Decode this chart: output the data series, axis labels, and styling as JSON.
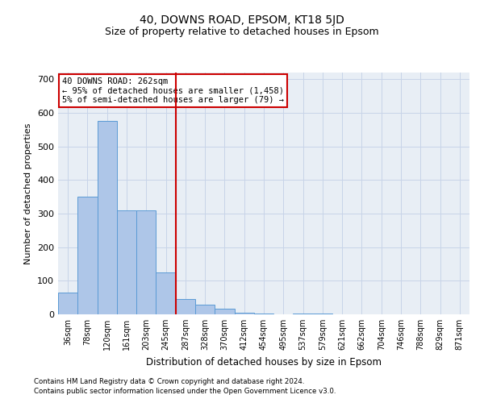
{
  "title": "40, DOWNS ROAD, EPSOM, KT18 5JD",
  "subtitle": "Size of property relative to detached houses in Epsom",
  "xlabel": "Distribution of detached houses by size in Epsom",
  "ylabel": "Number of detached properties",
  "footnote1": "Contains HM Land Registry data © Crown copyright and database right 2024.",
  "footnote2": "Contains public sector information licensed under the Open Government Licence v3.0.",
  "bar_labels": [
    "36sqm",
    "78sqm",
    "120sqm",
    "161sqm",
    "203sqm",
    "245sqm",
    "287sqm",
    "328sqm",
    "370sqm",
    "412sqm",
    "454sqm",
    "495sqm",
    "537sqm",
    "579sqm",
    "621sqm",
    "662sqm",
    "704sqm",
    "746sqm",
    "788sqm",
    "829sqm",
    "871sqm"
  ],
  "bar_values": [
    65,
    350,
    575,
    310,
    310,
    125,
    45,
    30,
    18,
    5,
    3,
    0,
    3,
    3,
    0,
    0,
    0,
    0,
    0,
    0,
    0
  ],
  "bar_color": "#aec6e8",
  "bar_edgecolor": "#5b9bd5",
  "vline_color": "#cc0000",
  "annotation_text": "40 DOWNS ROAD: 262sqm\n← 95% of detached houses are smaller (1,458)\n5% of semi-detached houses are larger (79) →",
  "annotation_box_color": "white",
  "annotation_box_edgecolor": "#cc0000",
  "annotation_fontsize": 7.5,
  "ylim": [
    0,
    720
  ],
  "yticks": [
    0,
    100,
    200,
    300,
    400,
    500,
    600,
    700
  ],
  "grid_color": "#c8d4e8",
  "bg_color": "#e8eef5",
  "title_fontsize": 10,
  "subtitle_fontsize": 9,
  "ylabel_fontsize": 8,
  "xlabel_fontsize": 8.5
}
